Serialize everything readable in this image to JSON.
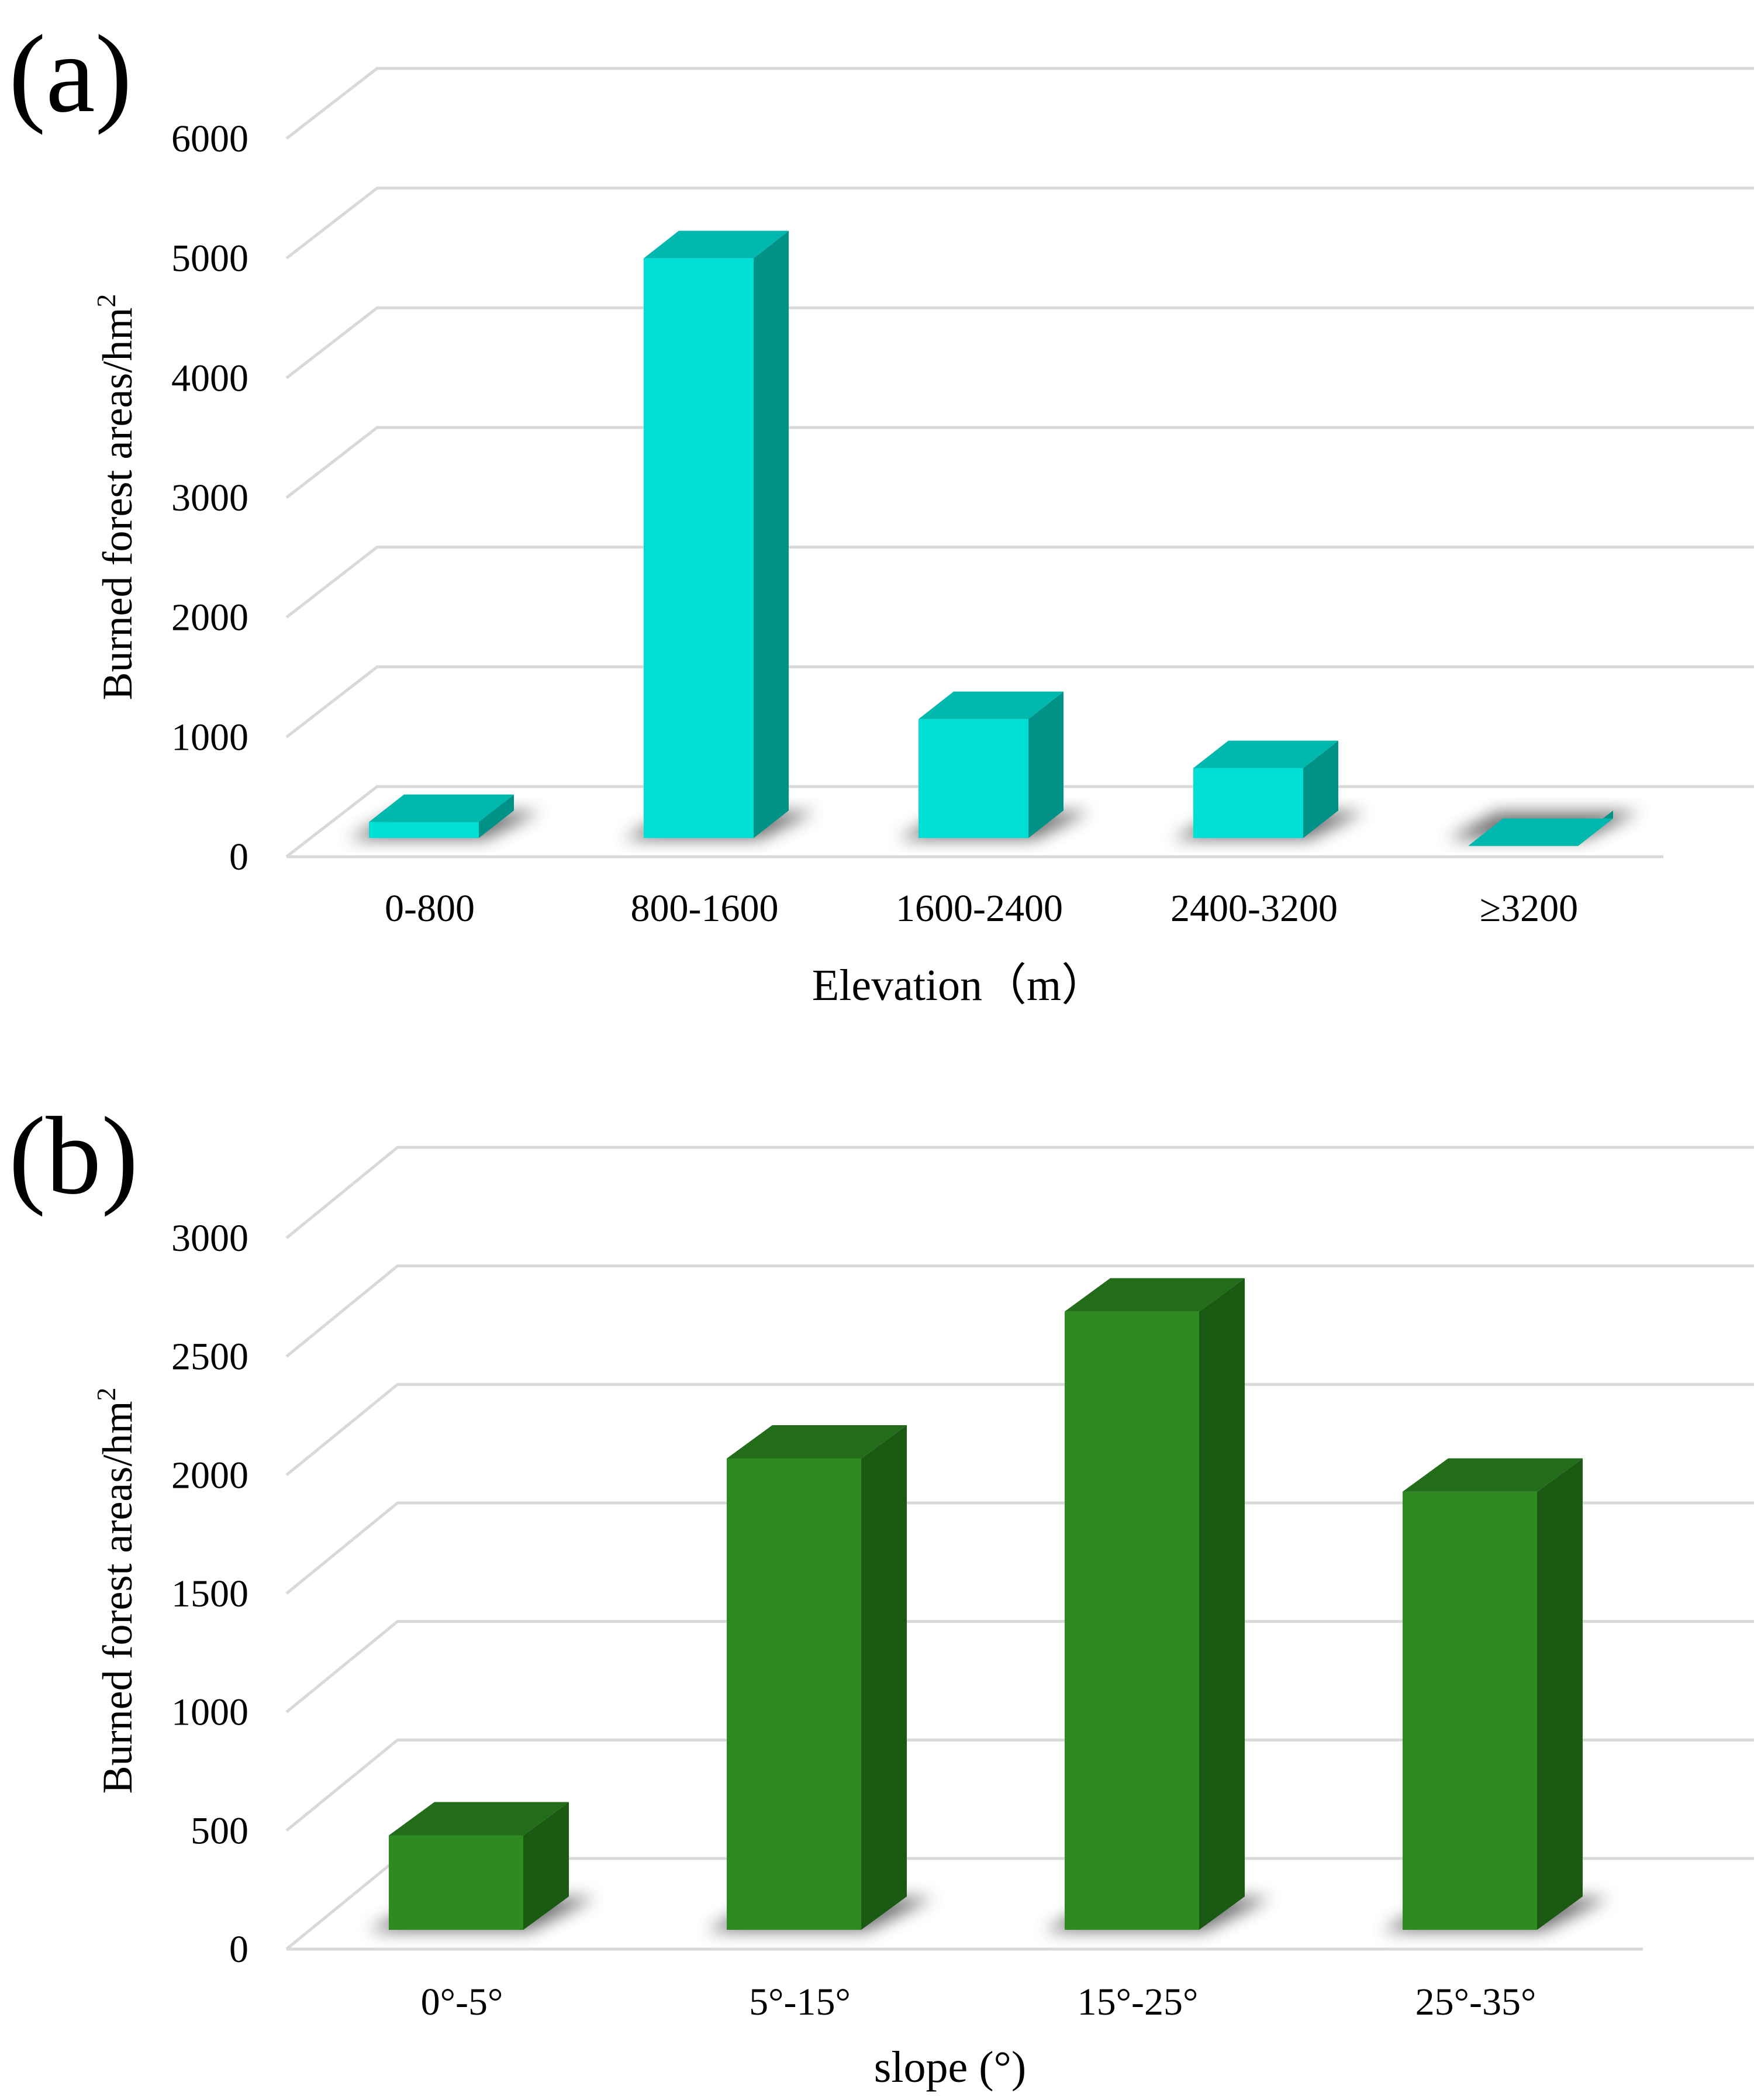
{
  "colors": {
    "grid": "#d9d9d9",
    "shadow": "#5a5a5a"
  },
  "chart_data": [
    {
      "type": "bar",
      "panel_label": "(a)",
      "categories": [
        "0-800",
        "800-1600",
        "1600-2400",
        "2400-3200",
        "≥3200"
      ],
      "values": [
        290,
        5000,
        1150,
        740,
        90
      ],
      "ylim": [
        0,
        6000
      ],
      "yticks": [
        "0",
        "1000",
        "2000",
        "3000",
        "4000",
        "5000",
        "6000"
      ],
      "xlabel": "Elevation（m）",
      "ylabel": "Burned forest areas/hm",
      "ylabel_superscript": "2",
      "colors": {
        "front": "#00dfd4",
        "top": "#00b8ae",
        "side": "#009187"
      }
    },
    {
      "type": "bar",
      "panel_label": "(b)",
      "categories": [
        "0°-5°",
        "5°-15°",
        "15°-25°",
        "25°-35°"
      ],
      "values": [
        480,
        2070,
        2690,
        1930
      ],
      "ylim": [
        0,
        3000
      ],
      "yticks": [
        "0",
        "500",
        "1000",
        "1500",
        "2000",
        "2500",
        "3000"
      ],
      "xlabel": "slope (°)",
      "ylabel": "Burned forest areas/hm",
      "ylabel_superscript": "2",
      "colors": {
        "front": "#2e8b22",
        "top": "#236c1a",
        "side": "#1b5a13"
      }
    }
  ]
}
